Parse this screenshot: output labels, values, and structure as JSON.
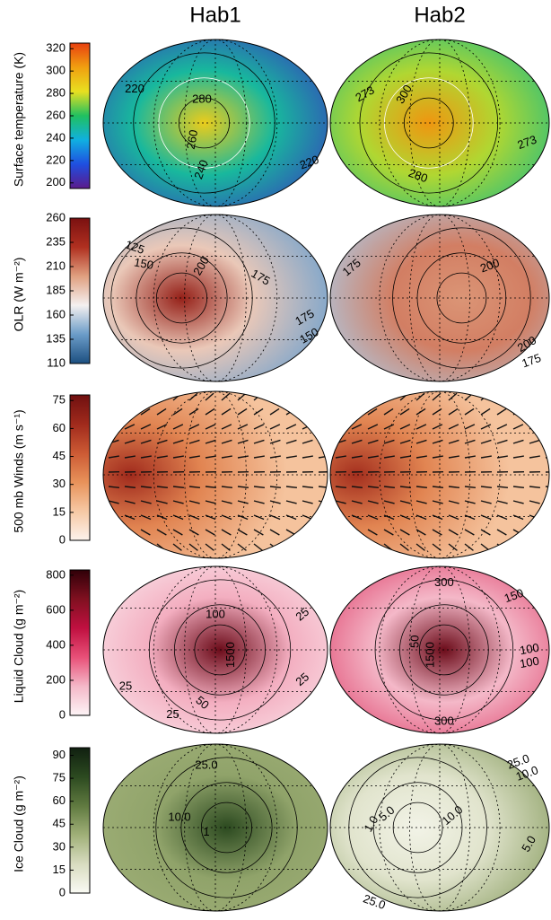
{
  "columns": [
    "Hab1",
    "Hab2"
  ],
  "rows": [
    {
      "label": "Surface temperature (K)",
      "colors": [
        "#5b1a8c",
        "#1f4fe0",
        "#10b0e0",
        "#20c060",
        "#e8e020",
        "#f0a010",
        "#e84010"
      ],
      "cbar_lim": [
        195,
        325
      ],
      "ticks": [
        200,
        220,
        240,
        260,
        280,
        300,
        320
      ],
      "panels": [
        {
          "contour_labels": [
            "220",
            "280",
            "260",
            "240",
            "220"
          ]
        },
        {
          "contour_labels": [
            "273",
            "300",
            "273",
            "280"
          ]
        }
      ]
    },
    {
      "label": "OLR (W m⁻²)",
      "colors": [
        "#1c4f80",
        "#6b9cc8",
        "#f4f0f0",
        "#e0a080",
        "#b03020",
        "#7a1010"
      ],
      "cbar_lim": [
        110,
        260
      ],
      "ticks": [
        110,
        135,
        160,
        185,
        210,
        235,
        260
      ],
      "panels": [
        {
          "contour_labels": [
            "125",
            "150",
            "200",
            "175",
            "175",
            "150"
          ]
        },
        {
          "contour_labels": [
            "175",
            "200",
            "200",
            "175"
          ]
        }
      ]
    },
    {
      "label": "500 mb Winds (m s⁻¹)",
      "colors": [
        "#fdf3ec",
        "#f6c8a4",
        "#e8925a",
        "#cc5a34",
        "#a02a1c",
        "#701010"
      ],
      "cbar_lim": [
        0,
        78
      ],
      "ticks": [
        0,
        15,
        30,
        45,
        60,
        75
      ],
      "panels": [
        {
          "contour_labels": []
        },
        {
          "contour_labels": []
        }
      ]
    },
    {
      "label": "Liquid Cloud (g m⁻²)",
      "colors": [
        "#fdf4f6",
        "#f4b8c8",
        "#e85078",
        "#c01040",
        "#801020",
        "#300008"
      ],
      "cbar_lim": [
        0,
        830
      ],
      "ticks": [
        0,
        200,
        400,
        600,
        800
      ],
      "panels": [
        {
          "contour_labels": [
            "100",
            "25",
            "1500",
            "25",
            "25",
            "50",
            "25"
          ]
        },
        {
          "contour_labels": [
            "300",
            "150",
            "50",
            "1500",
            "100",
            "100",
            "300"
          ]
        }
      ]
    },
    {
      "label": "Ice Cloud (g m⁻²)",
      "colors": [
        "#fafaf4",
        "#d8dcc0",
        "#a0b078",
        "#607a40",
        "#2c4a20",
        "#102010"
      ],
      "cbar_lim": [
        0,
        95
      ],
      "ticks": [
        0,
        15,
        30,
        45,
        60,
        75,
        90
      ],
      "panels": [
        {
          "contour_labels": [
            "25.0",
            "10.0",
            "1"
          ]
        },
        {
          "contour_labels": [
            "25.0",
            "10.0",
            "5.0",
            "1.0",
            "10.0",
            "5.0",
            "25.0"
          ]
        }
      ]
    }
  ]
}
